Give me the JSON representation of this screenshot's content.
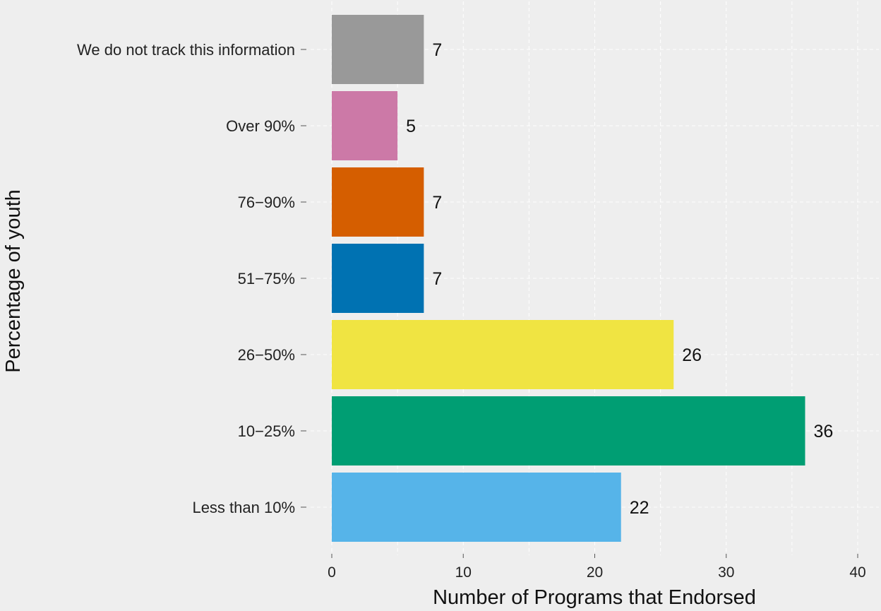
{
  "chart_data": {
    "type": "bar",
    "orientation": "horizontal",
    "title": "",
    "xlabel": "Number of Programs that Endorsed",
    "ylabel": "Percentage of youth",
    "categories": [
      "We do not track this information",
      "Over 90%",
      "76−90%",
      "51−75%",
      "26−50%",
      "10−25%",
      "Less than 10%"
    ],
    "values": [
      7,
      5,
      7,
      7,
      26,
      36,
      22
    ],
    "colors": [
      "#999999",
      "#cc79a7",
      "#d55e00",
      "#0072b2",
      "#f0e442",
      "#009e73",
      "#56b4e9"
    ],
    "xlim": [
      0,
      40
    ],
    "xticks": [
      0,
      10,
      20,
      30,
      40
    ],
    "grid": true,
    "legend": "none",
    "background": "#eeeeee"
  }
}
